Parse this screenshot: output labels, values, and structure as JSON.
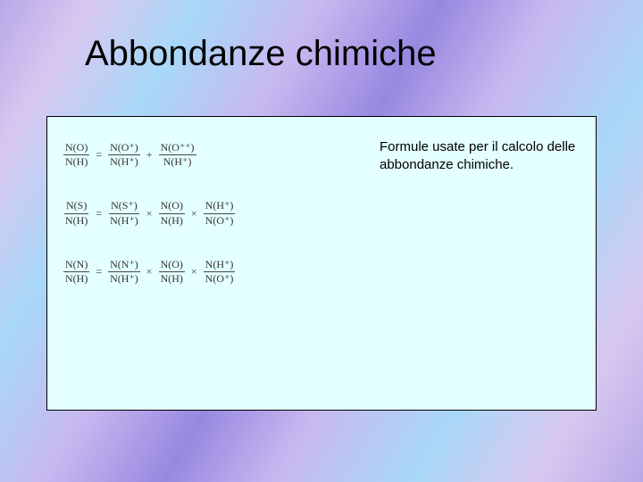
{
  "slide": {
    "title": "Abbondanze chimiche",
    "description": "Formule usate per il calcolo delle abbondanze chimiche.",
    "box_background": "#e4ffff",
    "box_border": "#000000",
    "title_fontsize": 40,
    "desc_fontsize": 15
  },
  "formulas": [
    {
      "terms": [
        {
          "num": "N(O)",
          "den": "N(H)"
        },
        {
          "op": "="
        },
        {
          "num": "N(O⁺)",
          "den": "N(H⁺)"
        },
        {
          "op": "+"
        },
        {
          "num": "N(O⁺⁺)",
          "den": "N(H⁺)"
        }
      ]
    },
    {
      "terms": [
        {
          "num": "N(S)",
          "den": "N(H)"
        },
        {
          "op": "="
        },
        {
          "num": "N(S⁺)",
          "den": "N(H⁺)"
        },
        {
          "op": "×"
        },
        {
          "num": "N(O)",
          "den": "N(H)"
        },
        {
          "op": "×"
        },
        {
          "num": "N(H⁺)",
          "den": "N(O⁺)"
        }
      ]
    },
    {
      "terms": [
        {
          "num": "N(N)",
          "den": "N(H)"
        },
        {
          "op": "="
        },
        {
          "num": "N(N⁺)",
          "den": "N(H⁺)"
        },
        {
          "op": "×"
        },
        {
          "num": "N(O)",
          "den": "N(H)"
        },
        {
          "op": "×"
        },
        {
          "num": "N(H⁺)",
          "den": "N(O⁺)"
        }
      ]
    }
  ]
}
